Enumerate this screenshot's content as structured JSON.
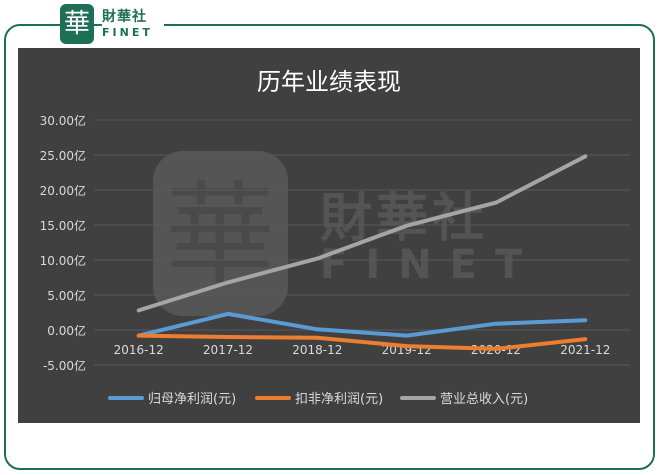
{
  "brand": {
    "logo_char": "華",
    "name_cn": "財華社",
    "name_en": "FINET"
  },
  "chart_data": {
    "type": "line",
    "title": "历年业绩表现",
    "categories": [
      "2016-12",
      "2017-12",
      "2018-12",
      "2019-12",
      "2020-12",
      "2021-12"
    ],
    "y_ticks": [
      "30.00亿",
      "25.00亿",
      "20.00亿",
      "15.00亿",
      "10.00亿",
      "5.00亿",
      "0.00亿",
      "-5.00亿"
    ],
    "ylim": [
      -5,
      30
    ],
    "series": [
      {
        "name": "归母净利润(元)",
        "color": "#5b9bd5",
        "values": [
          -0.8,
          2.3,
          0.1,
          -0.8,
          0.9,
          1.4
        ]
      },
      {
        "name": "扣非净利润(元)",
        "color": "#ed7d31",
        "values": [
          -0.8,
          -1.0,
          -1.1,
          -2.3,
          -2.7,
          -1.3
        ]
      },
      {
        "name": "营业总收入(元)",
        "color": "#a5a5a5",
        "values": [
          2.8,
          6.8,
          10.2,
          14.9,
          18.2,
          24.8
        ]
      }
    ],
    "grid": true,
    "legend_position": "bottom",
    "watermark": {
      "logo_char": "華",
      "name_cn": "財華社",
      "name_en": "FINET"
    }
  },
  "colors": {
    "brand": "#1f6f57",
    "panel": "#404040",
    "text": "#d9d9d9",
    "grid": "#595959"
  }
}
